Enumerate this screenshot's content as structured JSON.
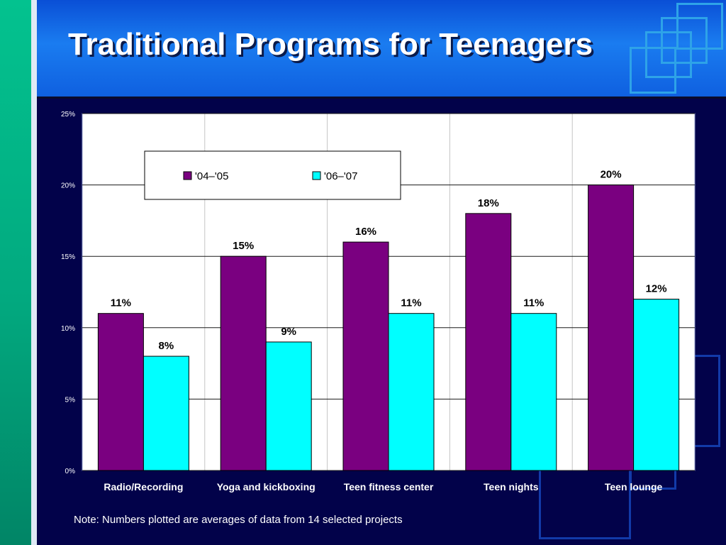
{
  "slide": {
    "title": "Traditional Programs for Teenagers",
    "note": "Note: Numbers plotted are averages of data from 14 selected projects"
  },
  "colors": {
    "series_04_05": "#7a0080",
    "series_06_07": "#00ffff",
    "plot_background": "#ffffff",
    "slide_background": "#02024a",
    "header_blue": "#1a7cf0",
    "stripe_green": "#03c28f"
  },
  "chart_data": {
    "type": "bar",
    "title": "",
    "xlabel": "",
    "ylabel": "",
    "categories": [
      "Radio/Recording",
      "Yoga and kickboxing",
      "Teen fitness center",
      "Teen nights",
      "Teen lounge"
    ],
    "series": [
      {
        "name": "'04–'05",
        "values": [
          11,
          15,
          16,
          18,
          20
        ],
        "labels": [
          "11%",
          "15%",
          "16%",
          "18%",
          "20%"
        ]
      },
      {
        "name": "'06–'07",
        "values": [
          8,
          9,
          11,
          11,
          12
        ],
        "labels": [
          "8%",
          "9%",
          "11%",
          "11%",
          "12%"
        ]
      }
    ],
    "ylim": [
      0,
      25
    ],
    "yticks": [
      0,
      5,
      10,
      15,
      20,
      25
    ],
    "ytick_labels": [
      "0%",
      "5%",
      "10%",
      "15%",
      "20%",
      "25%"
    ],
    "grid": true,
    "legend_position": "top-left inside plot"
  }
}
